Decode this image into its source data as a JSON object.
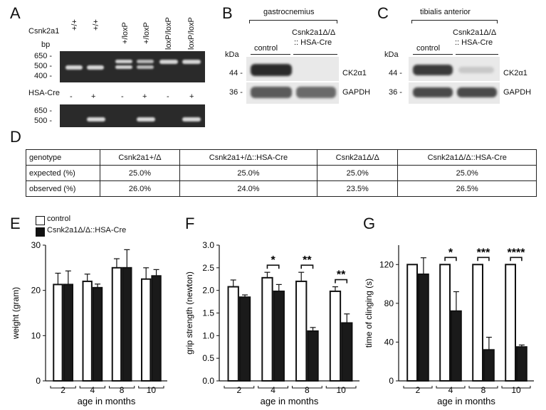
{
  "panel_letters": {
    "A": "A",
    "B": "B",
    "C": "C",
    "D": "D",
    "E": "E",
    "F": "F",
    "G": "G"
  },
  "panelA": {
    "gene_label": "Csnk2a1",
    "bp_label": "bp",
    "genotypes": [
      "+/+",
      "+/+",
      "+/loxP",
      "+/loxP",
      "loxP/loxP",
      "loxP/loxP"
    ],
    "markers_top": [
      "650 -",
      "500 -",
      "400 -"
    ],
    "hsacre_label": "HSA-Cre",
    "hsacre_signs": [
      "-",
      "+",
      "-",
      "+",
      "-",
      "+"
    ],
    "markers_bottom": [
      "650 -",
      "500 -"
    ]
  },
  "panelB": {
    "tissue": "gastrocnemius",
    "kda": "kDa",
    "col_control": "control",
    "col_mutant_line1": "Csnk2a1Δ/Δ",
    "col_mutant_line2": ":: HSA-Cre",
    "mw": [
      "44 -",
      "36 -"
    ],
    "bands": [
      "CK2α1",
      "GAPDH"
    ]
  },
  "panelC": {
    "tissue": "tibialis anterior",
    "kda": "kDa",
    "col_control": "control",
    "col_mutant_line1": "Csnk2a1Δ/Δ",
    "col_mutant_line2": ":: HSA-Cre",
    "mw": [
      "44 -",
      "36 -"
    ],
    "bands": [
      "CK2α1",
      "GAPDH"
    ]
  },
  "panelD": {
    "header": [
      "genotype",
      "Csnk2a1+/Δ",
      "Csnk2a1+/Δ::HSA-Cre",
      "Csnk2a1Δ/Δ",
      "Csnk2a1Δ/Δ::HSA-Cre"
    ],
    "rows": [
      [
        "expected (%)",
        "25.0%",
        "25.0%",
        "25.0%",
        "25.0%"
      ],
      [
        "observed (%)",
        "26.0%",
        "24.0%",
        "23.5%",
        "26.5%"
      ]
    ]
  },
  "legend": {
    "control": "control",
    "mutant": "Csnk2a1Δ/Δ::HSA-Cre"
  },
  "chart_data": [
    {
      "type": "bar",
      "panel": "E",
      "categories": [
        "2",
        "4",
        "8",
        "10"
      ],
      "xlabel": "age in months",
      "ylabel": "weight (gram)",
      "ylim": [
        0,
        30
      ],
      "yticks": [
        0,
        10,
        20,
        30
      ],
      "series": [
        {
          "name": "control",
          "values": [
            21.3,
            22.0,
            25.0,
            22.5
          ],
          "errors": [
            2.5,
            1.6,
            2.0,
            2.5
          ]
        },
        {
          "name": "Csnk2a1Δ/Δ::HSA-Cre",
          "values": [
            21.3,
            20.6,
            25.0,
            23.2
          ],
          "errors": [
            3.0,
            0.8,
            4.0,
            1.4
          ]
        }
      ],
      "significance": [
        "",
        "",
        "",
        ""
      ]
    },
    {
      "type": "bar",
      "panel": "F",
      "categories": [
        "2",
        "4",
        "8",
        "10"
      ],
      "xlabel": "age in months",
      "ylabel": "grip strength (newton)",
      "ylim": [
        0,
        3.0
      ],
      "yticks": [
        0.0,
        0.5,
        1.0,
        1.5,
        2.0,
        2.5,
        3.0
      ],
      "series": [
        {
          "name": "control",
          "values": [
            2.08,
            2.28,
            2.2,
            1.98
          ],
          "errors": [
            0.15,
            0.12,
            0.2,
            0.1
          ]
        },
        {
          "name": "Csnk2a1Δ/Δ::HSA-Cre",
          "values": [
            1.85,
            1.98,
            1.1,
            1.28
          ],
          "errors": [
            0.05,
            0.15,
            0.08,
            0.2
          ]
        }
      ],
      "significance": [
        "",
        "*",
        "**",
        "**"
      ]
    },
    {
      "type": "bar",
      "panel": "G",
      "categories": [
        "2",
        "4",
        "8",
        "10"
      ],
      "xlabel": "age in months",
      "ylabel": "time of clinging (s)",
      "ylim": [
        0,
        140
      ],
      "yticks": [
        0,
        40,
        80,
        120
      ],
      "series": [
        {
          "name": "control",
          "values": [
            120,
            120,
            120,
            120
          ],
          "errors": [
            0,
            0,
            0,
            0
          ]
        },
        {
          "name": "Csnk2a1Δ/Δ::HSA-Cre",
          "values": [
            110,
            72,
            32,
            35
          ],
          "errors": [
            17,
            20,
            13,
            2
          ]
        }
      ],
      "significance": [
        "",
        "*",
        "***",
        "****"
      ]
    }
  ]
}
